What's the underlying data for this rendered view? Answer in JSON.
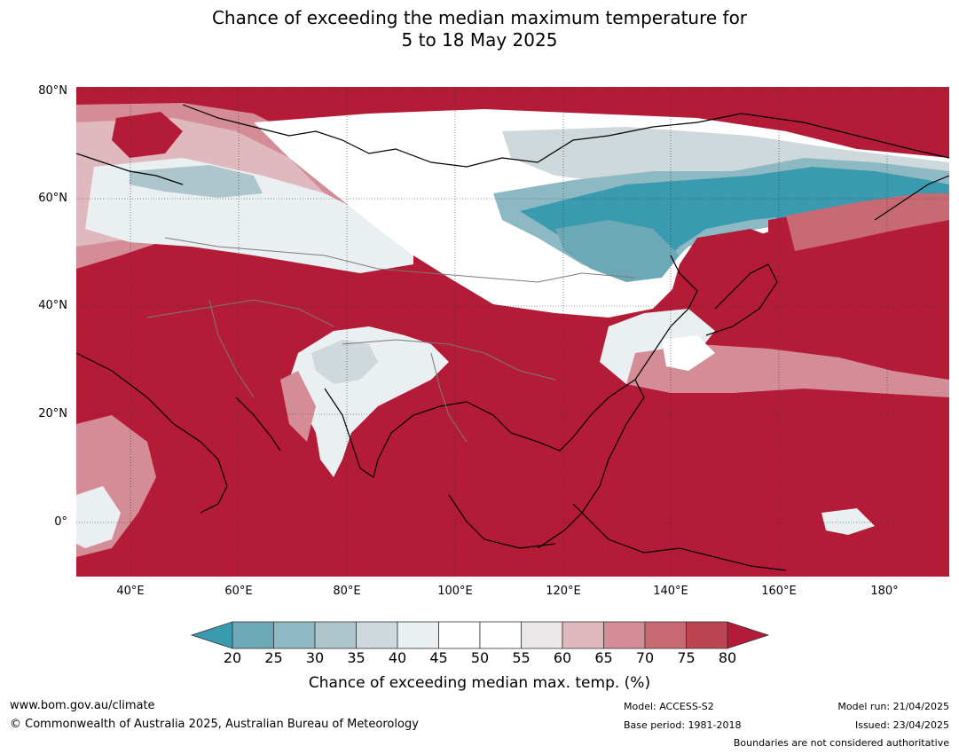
{
  "title": {
    "line1": "Chance of exceeding the median maximum temperature for",
    "line2": "5 to 18 May 2025"
  },
  "axes": {
    "y_ticks": [
      "80°N",
      "60°N",
      "40°N",
      "20°N",
      "0°"
    ],
    "x_ticks": [
      "40°E",
      "60°E",
      "80°E",
      "100°E",
      "120°E",
      "140°E",
      "160°E",
      "180°"
    ],
    "lon_range": [
      30,
      191
    ],
    "lat_range": [
      -10,
      80
    ],
    "grid": true
  },
  "colorbar": {
    "ticks": [
      "20",
      "25",
      "30",
      "35",
      "40",
      "45",
      "50",
      "55",
      "60",
      "65",
      "70",
      "75",
      "80"
    ],
    "colors": [
      "#3a9bb0",
      "#6ca8b5",
      "#8db9c4",
      "#adc6cc",
      "#cfd9dc",
      "#eaeff1",
      "#ffffff",
      "#ffffff",
      "#ece8ea",
      "#e0b9bf",
      "#d48d96",
      "#c76a74",
      "#bc4552",
      "#b41b37"
    ],
    "label": "Chance of exceeding median max. temp. (%)",
    "extend": "both"
  },
  "footer": {
    "website": "www.bom.gov.au/climate",
    "copyright": "© Commonwealth of Australia 2025, Australian Bureau of Meteorology",
    "model": "Model: ACCESS-S2",
    "base_period": "Base period: 1981-2018",
    "model_run": "Model run: 21/04/2025",
    "issued": "Issued: 23/04/2025",
    "disclaimer": "Boundaries are not considered authoritative"
  }
}
